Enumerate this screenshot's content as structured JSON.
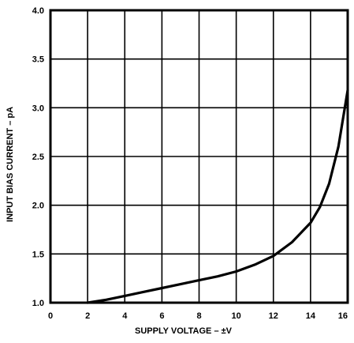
{
  "chart_data": {
    "type": "line",
    "title": "",
    "xlabel": "SUPPLY VOLTAGE – ±V",
    "ylabel": "INPUT BIAS CURRENT – pA",
    "xlim": [
      0,
      16
    ],
    "ylim": [
      1.0,
      4.0
    ],
    "x_ticks": [
      "0",
      "2",
      "4",
      "6",
      "8",
      "10",
      "12",
      "14",
      "16"
    ],
    "y_ticks": [
      "1.0",
      "1.5",
      "2.0",
      "2.5",
      "3.0",
      "3.5",
      "4.0"
    ],
    "grid": true,
    "series": [
      {
        "x": [
          2.0,
          3.0,
          4.0,
          5.0,
          6.0,
          7.0,
          8.0,
          9.0,
          10.0,
          11.0,
          12.0,
          13.0,
          14.0,
          14.5,
          15.0,
          15.5,
          16.0
        ],
        "y": [
          1.0,
          1.03,
          1.07,
          1.11,
          1.15,
          1.19,
          1.23,
          1.27,
          1.32,
          1.39,
          1.48,
          1.62,
          1.82,
          1.98,
          2.22,
          2.6,
          3.18
        ]
      }
    ]
  }
}
